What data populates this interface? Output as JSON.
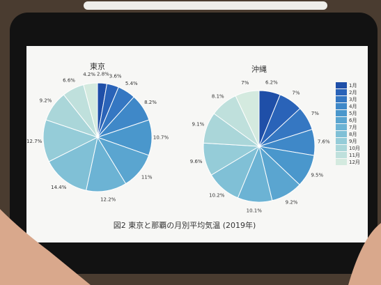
{
  "chart_data": [
    {
      "type": "pie",
      "title": "東京",
      "values": [
        2.8,
        3.6,
        5.4,
        8.2,
        10.7,
        11,
        12.2,
        14.4,
        12.7,
        9.2,
        6.6,
        4.2
      ],
      "value_labels": [
        "2.8%",
        "3.6%",
        "5.4%",
        "8.2%",
        "10.7%",
        "11%",
        "12.2%",
        "14.4%",
        "12.7%",
        "9.2%",
        "6.6%",
        "4.2%"
      ]
    },
    {
      "type": "pie",
      "title": "沖縄",
      "values": [
        6.2,
        7,
        7,
        7.6,
        9.5,
        9.2,
        10.1,
        10.2,
        9.6,
        9.1,
        8.1,
        7
      ],
      "value_labels": [
        "6.2%",
        "7%",
        "7%",
        "7.6%",
        "9.5%",
        "9.2%",
        "10.1%",
        "10.2%",
        "9.6%",
        "9.1%",
        "8.1%",
        "7%"
      ]
    }
  ],
  "legend": {
    "labels": [
      "1月",
      "2月",
      "3月",
      "4月",
      "5月",
      "6月",
      "7月",
      "8月",
      "9月",
      "10月",
      "11月",
      "12月"
    ],
    "colors": [
      "#1f4fa8",
      "#2a63b8",
      "#3577c2",
      "#3f88c8",
      "#4a97cc",
      "#5aa5d0",
      "#6cb3d4",
      "#80c0d6",
      "#95ccd8",
      "#aad6d9",
      "#bfe0dc",
      "#d4eadf"
    ]
  },
  "caption": "図2 東京と那覇の月別平均気温 (2019年)"
}
